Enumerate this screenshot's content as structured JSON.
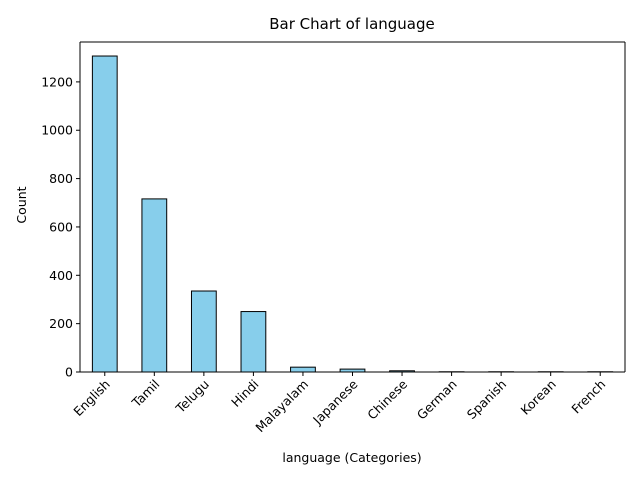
{
  "chart_data": {
    "type": "bar",
    "title": "Bar Chart of language",
    "xlabel": "language (Categories)",
    "ylabel": "Count",
    "categories": [
      "English",
      "Tamil",
      "Telugu",
      "Hindi",
      "Malayalam",
      "Japanese",
      "Chinese",
      "German",
      "Spanish",
      "Korean",
      "French"
    ],
    "values": [
      1307,
      716,
      335,
      250,
      20,
      12,
      5,
      1,
      1,
      1,
      1
    ],
    "ylim": [
      0,
      1365
    ],
    "yticks": [
      0,
      200,
      400,
      600,
      800,
      1000,
      1200
    ],
    "grid": false,
    "legend": false,
    "colors": {
      "bar_fill": "#87ceeb",
      "bar_edge": "#000000",
      "axis": "#000000",
      "background": "#ffffff"
    }
  }
}
